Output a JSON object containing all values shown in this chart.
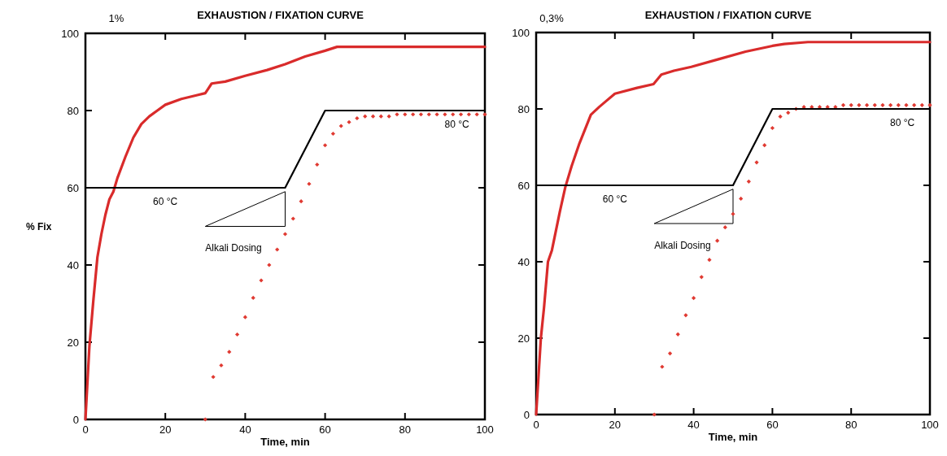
{
  "chart_data": [
    {
      "type": "line",
      "title": "EXHAUSTION / FIXATION CURVE",
      "subtitle": "1%",
      "xlabel": "Time, min",
      "ylabel": "% Fix",
      "xlim": [
        0,
        100
      ],
      "ylim": [
        0,
        100
      ],
      "xticks": [
        0,
        20,
        40,
        60,
        80,
        100
      ],
      "yticks": [
        0,
        20,
        40,
        60,
        80,
        100
      ],
      "series": [
        {
          "color": "#d92b2b",
          "x": [
            0,
            1,
            2,
            3,
            4,
            5,
            6,
            7,
            8,
            10,
            12,
            14,
            16,
            18,
            20,
            24,
            28,
            30,
            31.6,
            35,
            40,
            45.5,
            50,
            55,
            60,
            63,
            67,
            100
          ],
          "values": [
            0,
            19,
            31,
            42,
            48,
            53,
            57,
            59,
            62.5,
            68,
            73,
            76.5,
            78.5,
            80,
            81.5,
            83,
            84,
            84.5,
            87,
            87.5,
            89,
            90.5,
            92,
            94,
            95.5,
            96.5,
            96.5,
            96.5
          ]
        },
        {
          "type": "scatter",
          "marker": "diamond",
          "color": "#e03a32",
          "x": [
            30,
            32,
            34,
            36,
            38,
            40,
            42,
            44,
            46,
            48,
            50,
            52,
            54,
            56,
            58,
            60,
            62,
            64,
            66,
            68,
            70,
            72,
            74,
            76,
            78,
            80,
            82,
            84,
            86,
            88,
            90,
            92,
            94,
            96,
            98,
            100
          ],
          "values": [
            0,
            11,
            14,
            17.5,
            22,
            26.5,
            31.5,
            36,
            40,
            44,
            48,
            52,
            56.5,
            61,
            66,
            71,
            74,
            76,
            77,
            78,
            78.5,
            78.5,
            78.5,
            78.5,
            79,
            79,
            79,
            79,
            79,
            79,
            79,
            79,
            79,
            79,
            79,
            79
          ]
        },
        {
          "color": "#000000",
          "x": [
            0,
            50,
            60,
            100
          ],
          "values": [
            60,
            60,
            80,
            80
          ]
        }
      ],
      "annotations": [
        "60 °C",
        "80 °C",
        "Alkali Dosing"
      ]
    },
    {
      "type": "line",
      "title": "EXHAUSTION / FIXATION CURVE",
      "subtitle": "0,3%",
      "xlabel": "Time, min",
      "xlim": [
        0,
        100
      ],
      "ylim": [
        0,
        100
      ],
      "xticks": [
        0,
        20,
        40,
        60,
        80,
        100
      ],
      "yticks": [
        0,
        20,
        40,
        60,
        80,
        100
      ],
      "series": [
        {
          "color": "#d92b2b",
          "x": [
            0,
            1.2,
            2,
            3,
            4,
            5,
            6,
            7.4,
            9,
            11,
            13.9,
            16,
            17.7,
            20,
            25.6,
            29.8,
            31.8,
            35,
            39.4,
            46.3,
            53.2,
            60,
            63,
            69,
            100
          ],
          "values": [
            0,
            20,
            28,
            40,
            43,
            48,
            53,
            59.5,
            65,
            71,
            78.5,
            80.5,
            82,
            84,
            85.5,
            86.5,
            89,
            90,
            91,
            93,
            95,
            96.5,
            97,
            97.5,
            97.5
          ]
        },
        {
          "type": "scatter",
          "marker": "diamond",
          "color": "#e03a32",
          "x": [
            30,
            32,
            34,
            36,
            38,
            40,
            42,
            44,
            46,
            48,
            50,
            52,
            54,
            56,
            58,
            60,
            62,
            64,
            66,
            68,
            70,
            72,
            74,
            76,
            78,
            80,
            82,
            84,
            86,
            88,
            90,
            92,
            94,
            96,
            98,
            100
          ],
          "values": [
            0,
            12.5,
            16,
            21,
            26,
            30.5,
            36,
            40.5,
            45.5,
            49,
            52.5,
            56.5,
            61,
            66,
            70.5,
            75,
            78,
            79,
            80,
            80.5,
            80.5,
            80.5,
            80.5,
            80.5,
            81,
            81,
            81,
            81,
            81,
            81,
            81,
            81,
            81,
            81,
            81,
            81
          ]
        },
        {
          "color": "#000000",
          "x": [
            0,
            50,
            60,
            100
          ],
          "values": [
            60,
            60,
            80,
            80
          ]
        }
      ],
      "annotations": [
        "60 °C",
        "80 °C",
        "Alkali Dosing"
      ]
    }
  ]
}
